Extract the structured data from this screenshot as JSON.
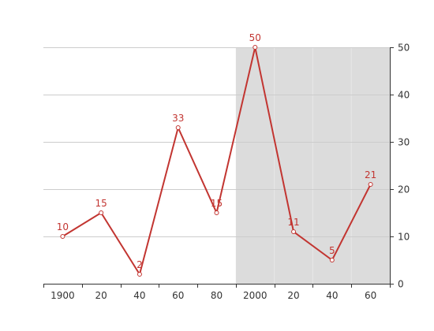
{
  "chart_data": {
    "type": "line",
    "x_tick_labels": [
      "1900",
      "20",
      "40",
      "60",
      "80",
      "2000",
      "20",
      "40",
      "60"
    ],
    "series": [
      {
        "values": [
          10,
          15,
          2,
          33,
          15,
          50,
          11,
          5,
          21
        ]
      }
    ],
    "data_labels": [
      "10",
      "15",
      "2",
      "33",
      "15",
      "50",
      "11",
      "5",
      "21"
    ],
    "y_ticks": [
      0,
      10,
      20,
      30,
      40,
      50
    ],
    "ylim": [
      0,
      50
    ],
    "y_axis_side": "right",
    "grid": true,
    "shaded_region": {
      "from_x_index": 4.5,
      "to_x_index": 8.5,
      "color": "#dcdcdc"
    },
    "line_color": "#c23531",
    "title": "",
    "xlabel": "",
    "ylabel": ""
  }
}
